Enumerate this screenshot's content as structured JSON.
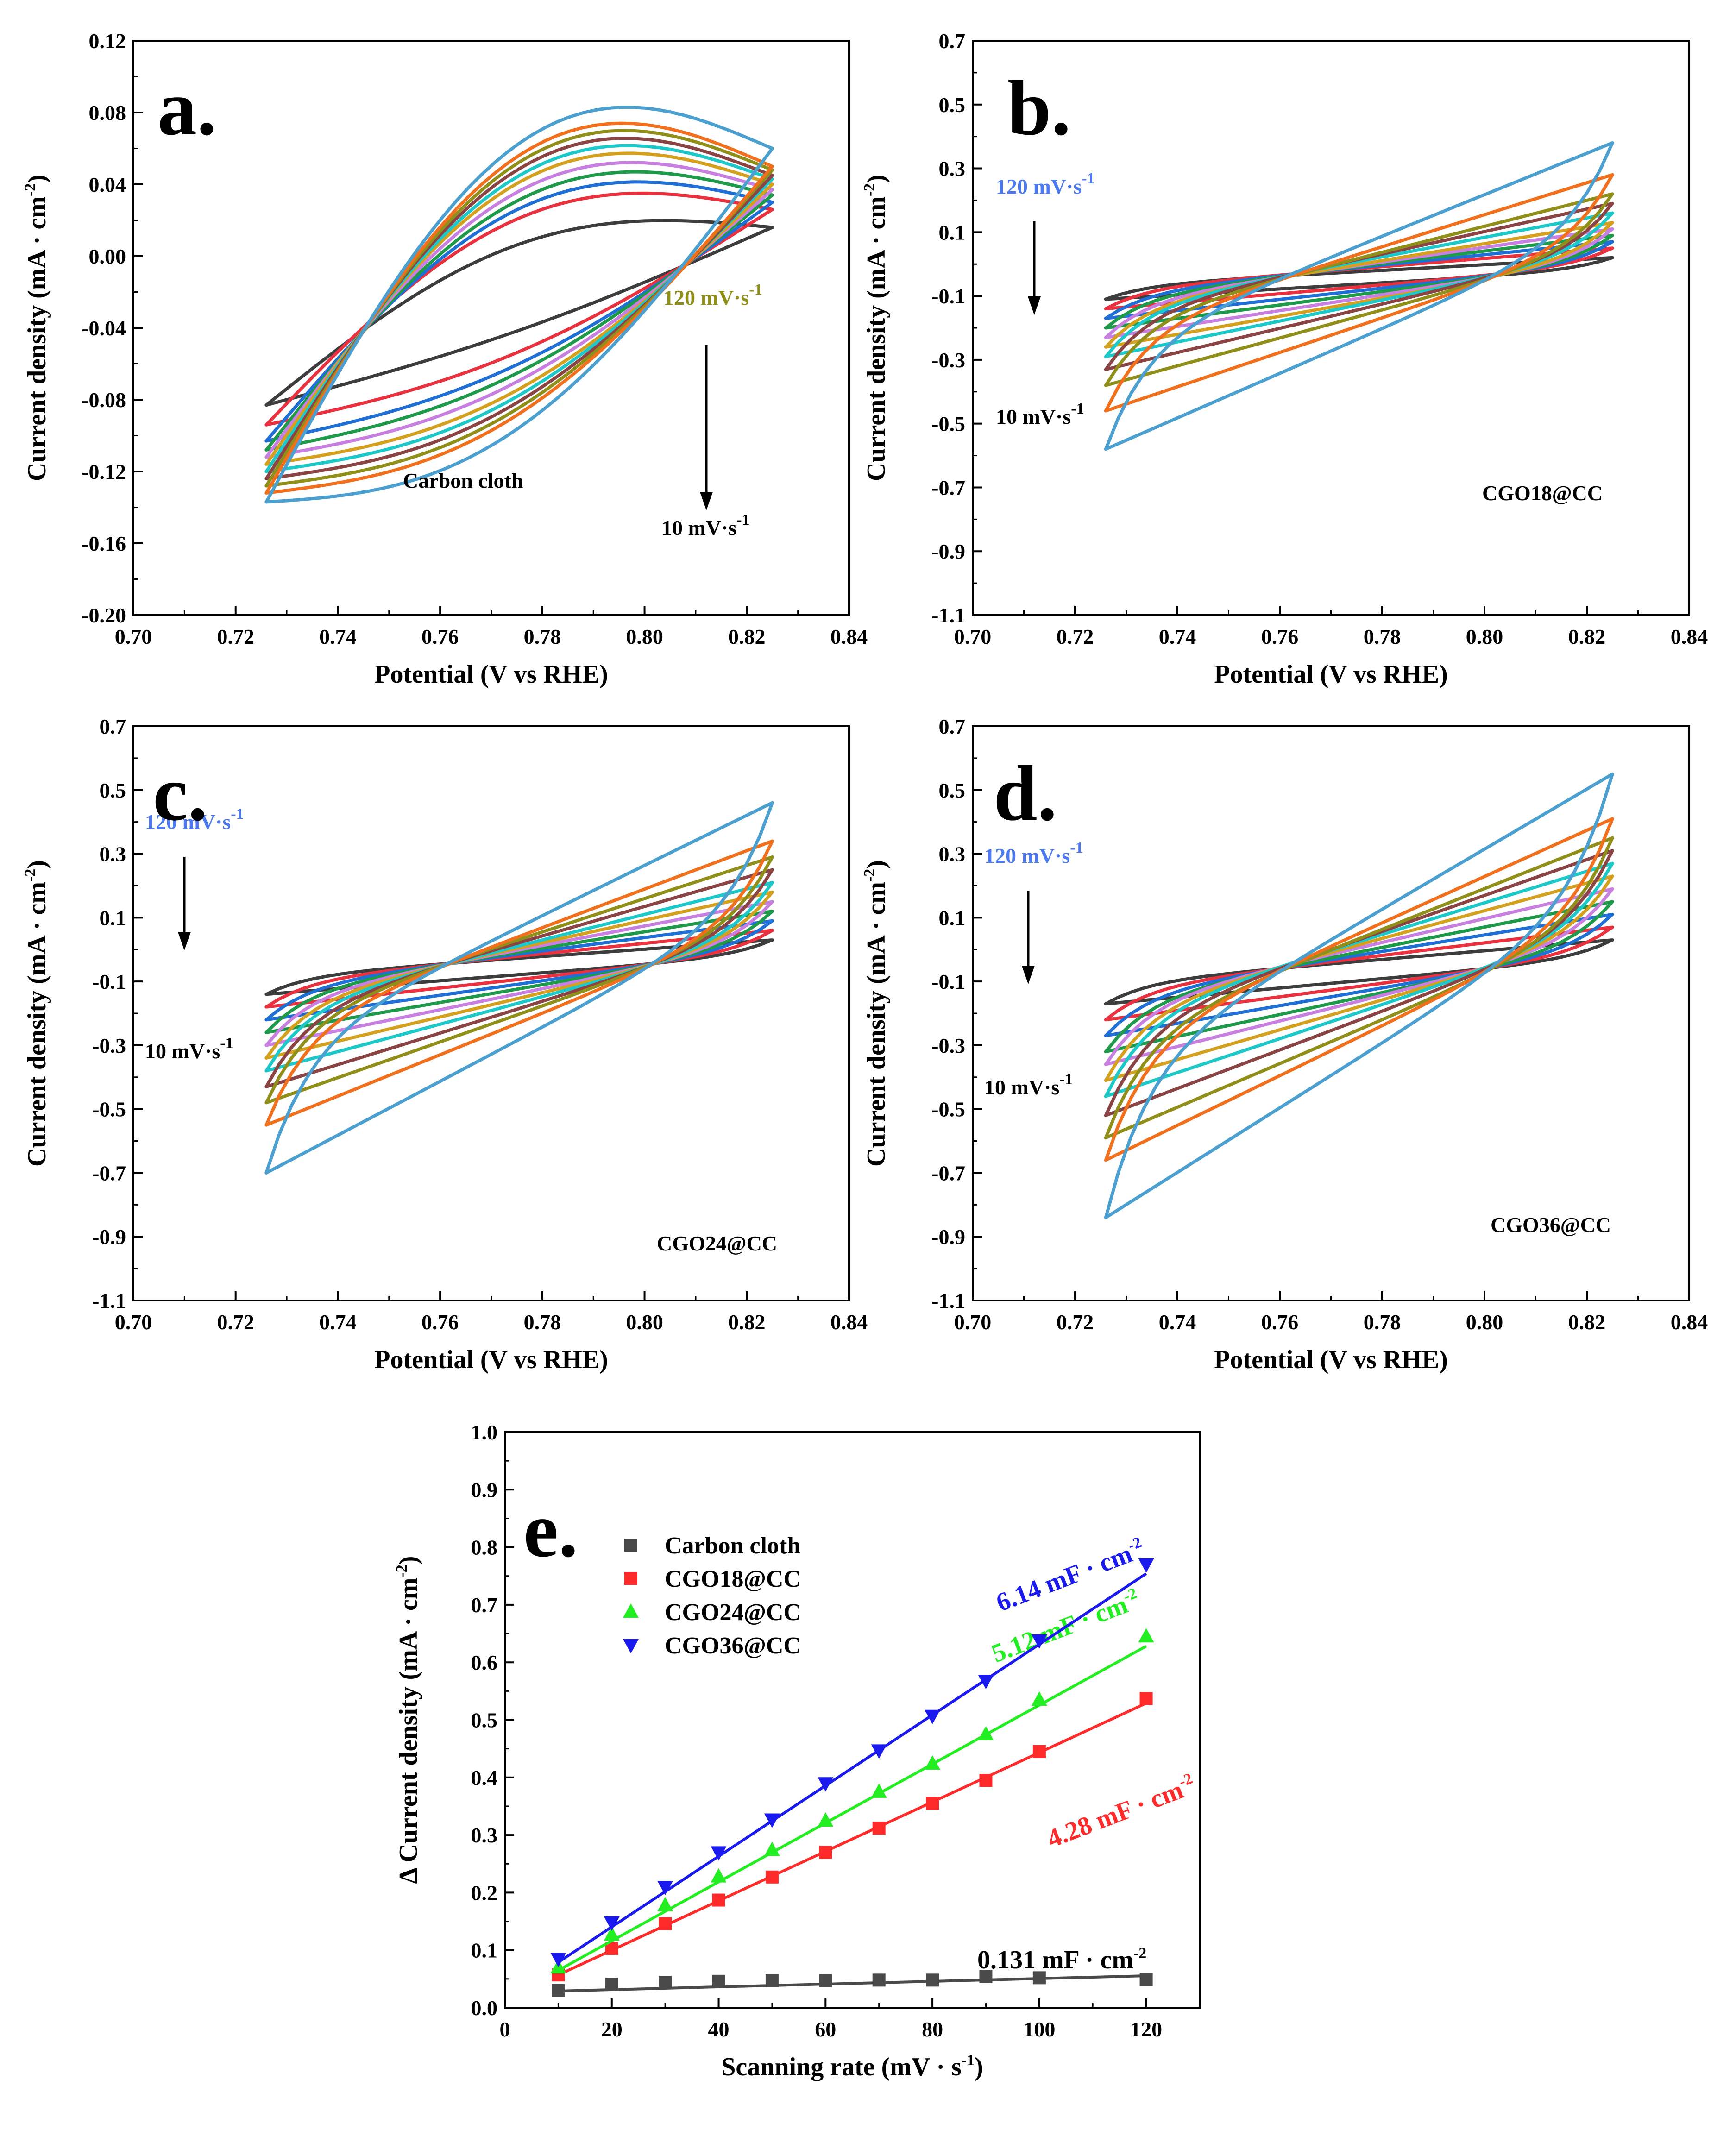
{
  "colors": {
    "cv_scan_colors": [
      "#3d3d3d",
      "#e8323f",
      "#1f6fd4",
      "#1f9a4a",
      "#c77fe0",
      "#d4a020",
      "#1fc8c8",
      "#8a4444",
      "#8f8f1a",
      "#f0701e",
      "#4ba0d0"
    ],
    "panel_a_label_120": "#8f8f1a",
    "panel_label_120_blue": "#4d79f0",
    "label_10": "#000000",
    "carbon_cloth": "#4a4a4a",
    "cgo18": "#ff2a2a",
    "cgo24": "#22ee22",
    "cgo36": "#1a1aee"
  },
  "chart_data": [
    {
      "id": "a",
      "type": "line",
      "panel_label": "a.",
      "sample": "Carbon cloth",
      "xlabel": "Potential (V vs RHE)",
      "ylabel": "Current density (mA · cm",
      "ylabel_sup": "-2",
      "ylabel_close": ")",
      "xlim": [
        0.7,
        0.84
      ],
      "ylim": [
        -0.2,
        0.12
      ],
      "xticks": [
        "0.70",
        "0.72",
        "0.74",
        "0.76",
        "0.78",
        "0.80",
        "0.82",
        "0.84"
      ],
      "yticks": [
        "-0.20",
        "-0.16",
        "-0.12",
        "-0.08",
        "-0.04",
        "0.00",
        "0.04",
        "0.08",
        "0.12"
      ],
      "ytick_values": [
        -0.2,
        -0.16,
        -0.12,
        -0.08,
        -0.04,
        0.0,
        0.04,
        0.08,
        0.12
      ],
      "label_high": "120 mV·s",
      "label_high_sup": "-1",
      "label_low": "10 mV·s",
      "label_low_sup": "-1",
      "scan_rates_mV_s": [
        10,
        20,
        30,
        40,
        50,
        60,
        70,
        80,
        90,
        100,
        120
      ],
      "potential_window": [
        0.726,
        0.825
      ],
      "loops": [
        {
          "low_start": -0.083,
          "low_end": 0.016,
          "high_start": -0.083,
          "high_end": 0.016,
          "mid_low": -0.04,
          "mid_high": 0.0
        },
        {
          "low_start": -0.094,
          "low_end": 0.026,
          "high_start": -0.094,
          "high_end": 0.026,
          "mid_low": -0.05,
          "mid_high": 0.012
        },
        {
          "low_start": -0.103,
          "low_end": 0.03,
          "high_start": -0.103,
          "high_end": 0.03,
          "mid_low": -0.056,
          "mid_high": 0.016
        },
        {
          "low_start": -0.108,
          "low_end": 0.034,
          "high_start": -0.108,
          "high_end": 0.034,
          "mid_low": -0.06,
          "mid_high": 0.02
        },
        {
          "low_start": -0.112,
          "low_end": 0.037,
          "high_start": -0.112,
          "high_end": 0.037,
          "mid_low": -0.064,
          "mid_high": 0.024
        },
        {
          "low_start": -0.116,
          "low_end": 0.04,
          "high_start": -0.116,
          "high_end": 0.04,
          "mid_low": -0.068,
          "mid_high": 0.028
        },
        {
          "low_start": -0.12,
          "low_end": 0.043,
          "high_start": -0.12,
          "high_end": 0.043,
          "mid_low": -0.071,
          "mid_high": 0.031
        },
        {
          "low_start": -0.124,
          "low_end": 0.045,
          "high_start": -0.124,
          "high_end": 0.045,
          "mid_low": -0.074,
          "mid_high": 0.034
        },
        {
          "low_start": -0.128,
          "low_end": 0.048,
          "high_start": -0.128,
          "high_end": 0.048,
          "mid_low": -0.077,
          "mid_high": 0.037
        },
        {
          "low_start": -0.132,
          "low_end": 0.05,
          "high_start": -0.132,
          "high_end": 0.05,
          "mid_low": -0.08,
          "mid_high": 0.04
        },
        {
          "low_start": -0.137,
          "low_end": 0.06,
          "high_start": -0.137,
          "high_end": 0.06,
          "mid_low": -0.086,
          "mid_high": 0.046
        }
      ]
    },
    {
      "id": "b",
      "type": "line",
      "panel_label": "b.",
      "sample": "CGO18@CC",
      "xlabel": "Potential (V vs RHE)",
      "ylabel": "Current density (mA · cm",
      "ylabel_sup": "-2",
      "ylabel_close": ")",
      "xlim": [
        0.7,
        0.84
      ],
      "ylim": [
        -1.1,
        0.7
      ],
      "xticks": [
        "0.70",
        "0.72",
        "0.74",
        "0.76",
        "0.78",
        "0.80",
        "0.82",
        "0.84"
      ],
      "yticks": [
        "-1.1",
        "-0.9",
        "-0.7",
        "-0.5",
        "-0.3",
        "-0.1",
        "0.1",
        "0.3",
        "0.5",
        "0.7"
      ],
      "ytick_values": [
        -1.1,
        -0.9,
        -0.7,
        -0.5,
        -0.3,
        -0.1,
        0.1,
        0.3,
        0.5,
        0.7
      ],
      "label_high": "120 mV·s",
      "label_high_sup": "-1",
      "label_low": "10 mV·s",
      "label_low_sup": "-1",
      "scan_rates_mV_s": [
        10,
        20,
        30,
        40,
        50,
        60,
        70,
        80,
        90,
        100,
        120
      ],
      "potential_window": [
        0.726,
        0.825
      ],
      "anodic_end": [
        0.02,
        0.05,
        0.07,
        0.09,
        0.11,
        0.13,
        0.16,
        0.19,
        0.22,
        0.28,
        0.38
      ],
      "cathodic_start": [
        -0.11,
        -0.14,
        -0.17,
        -0.2,
        -0.23,
        -0.26,
        -0.29,
        -0.33,
        -0.38,
        -0.46,
        -0.58
      ]
    },
    {
      "id": "c",
      "type": "line",
      "panel_label": "c.",
      "sample": "CGO24@CC",
      "xlabel": "Potential (V vs RHE)",
      "ylabel": "Current density (mA · cm",
      "ylabel_sup": "-2",
      "ylabel_close": ")",
      "xlim": [
        0.7,
        0.84
      ],
      "ylim": [
        -1.1,
        0.7
      ],
      "xticks": [
        "0.70",
        "0.72",
        "0.74",
        "0.76",
        "0.78",
        "0.80",
        "0.82",
        "0.84"
      ],
      "yticks": [
        "-1.1",
        "-0.9",
        "-0.7",
        "-0.5",
        "-0.3",
        "-0.1",
        "0.1",
        "0.3",
        "0.5",
        "0.7"
      ],
      "ytick_values": [
        -1.1,
        -0.9,
        -0.7,
        -0.5,
        -0.3,
        -0.1,
        0.1,
        0.3,
        0.5,
        0.7
      ],
      "label_high": "120 mV·s",
      "label_high_sup": "-1",
      "label_low": "10 mV·s",
      "label_low_sup": "-1",
      "scan_rates_mV_s": [
        10,
        20,
        30,
        40,
        50,
        60,
        70,
        80,
        90,
        100,
        120
      ],
      "potential_window": [
        0.726,
        0.825
      ],
      "anodic_end": [
        0.03,
        0.06,
        0.09,
        0.12,
        0.15,
        0.18,
        0.21,
        0.25,
        0.29,
        0.34,
        0.46
      ],
      "cathodic_start": [
        -0.14,
        -0.18,
        -0.22,
        -0.26,
        -0.3,
        -0.34,
        -0.38,
        -0.43,
        -0.48,
        -0.55,
        -0.7
      ]
    },
    {
      "id": "d",
      "type": "line",
      "panel_label": "d.",
      "sample": "CGO36@CC",
      "xlabel": "Potential (V vs RHE)",
      "ylabel": "Current density (mA · cm",
      "ylabel_sup": "-2",
      "ylabel_close": ")",
      "xlim": [
        0.7,
        0.84
      ],
      "ylim": [
        -1.1,
        0.7
      ],
      "xticks": [
        "0.70",
        "0.72",
        "0.74",
        "0.76",
        "0.78",
        "0.80",
        "0.82",
        "0.84"
      ],
      "yticks": [
        "-1.1",
        "-0.9",
        "-0.7",
        "-0.5",
        "-0.3",
        "-0.1",
        "0.1",
        "0.3",
        "0.5",
        "0.7"
      ],
      "ytick_values": [
        -1.1,
        -0.9,
        -0.7,
        -0.5,
        -0.3,
        -0.1,
        0.1,
        0.3,
        0.5,
        0.7
      ],
      "label_high": "120 mV·s",
      "label_high_sup": "-1",
      "label_low": "10 mV·s",
      "label_low_sup": "-1",
      "scan_rates_mV_s": [
        10,
        20,
        30,
        40,
        50,
        60,
        70,
        80,
        90,
        100,
        120
      ],
      "potential_window": [
        0.726,
        0.825
      ],
      "anodic_end": [
        0.03,
        0.07,
        0.11,
        0.15,
        0.19,
        0.23,
        0.27,
        0.31,
        0.35,
        0.41,
        0.55
      ],
      "cathodic_start": [
        -0.17,
        -0.22,
        -0.27,
        -0.32,
        -0.36,
        -0.41,
        -0.46,
        -0.52,
        -0.59,
        -0.66,
        -0.84
      ]
    },
    {
      "id": "e",
      "type": "scatter",
      "panel_label": "e.",
      "xlabel": "Scanning rate (mV · s",
      "xlabel_sup": "-1",
      "xlabel_close": ")",
      "ylabel": "Δ Current density (mA · cm",
      "ylabel_sup": "-2",
      "ylabel_close": ")",
      "xlim": [
        0,
        130
      ],
      "ylim": [
        0.0,
        1.0
      ],
      "xticks": [
        "0",
        "20",
        "40",
        "60",
        "80",
        "100",
        "120"
      ],
      "xtick_values": [
        0,
        20,
        40,
        60,
        80,
        100,
        120
      ],
      "yticks": [
        "0.0",
        "0.1",
        "0.2",
        "0.3",
        "0.4",
        "0.5",
        "0.6",
        "0.7",
        "0.8",
        "0.9",
        "1.0"
      ],
      "ytick_values": [
        0.0,
        0.1,
        0.2,
        0.3,
        0.4,
        0.5,
        0.6,
        0.7,
        0.8,
        0.9,
        1.0
      ],
      "x": [
        10,
        20,
        30,
        40,
        50,
        60,
        70,
        80,
        90,
        100,
        120
      ],
      "series": [
        {
          "name": "Carbon cloth",
          "marker": "square",
          "values": [
            0.03,
            0.041,
            0.044,
            0.046,
            0.047,
            0.047,
            0.048,
            0.048,
            0.054,
            0.052,
            0.049
          ],
          "fit": [
            0.029,
            0.0555
          ],
          "fit_label": "0.131 mF · cm",
          "fit_sup": "-2"
        },
        {
          "name": "CGO18@CC",
          "marker": "square",
          "values": [
            0.057,
            0.103,
            0.146,
            0.187,
            0.227,
            0.27,
            0.312,
            0.355,
            0.395,
            0.445,
            0.537
          ],
          "fit": [
            0.057,
            0.529
          ],
          "fit_label": "4.28 mF · cm",
          "fit_sup": "-2"
        },
        {
          "name": "CGO24@CC",
          "marker": "triangle-up",
          "values": [
            0.07,
            0.127,
            0.178,
            0.228,
            0.274,
            0.325,
            0.375,
            0.424,
            0.475,
            0.535,
            0.645
          ],
          "fit": [
            0.065,
            0.628
          ],
          "fit_label": "5.12 mF · cm",
          "fit_sup": "-2"
        },
        {
          "name": "CGO36@CC",
          "marker": "triangle-down",
          "values": [
            0.085,
            0.148,
            0.21,
            0.27,
            0.327,
            0.39,
            0.447,
            0.507,
            0.568,
            0.638,
            0.77
          ],
          "fit": [
            0.079,
            0.754
          ],
          "fit_label": "6.14 mF · cm",
          "fit_sup": "-2"
        }
      ]
    }
  ]
}
